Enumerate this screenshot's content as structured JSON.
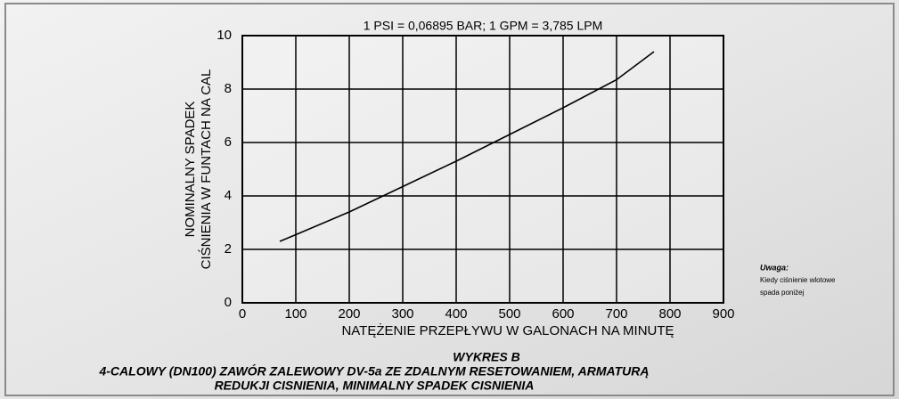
{
  "chart_data": {
    "type": "line",
    "title": "1 PSI = 0,06895 BAR; 1 GPM = 3,785 LPM",
    "xlabel": "NATĘŻENIE PRZEPŁYWU W GALONACH NA MINUTĘ",
    "ylabel": [
      "NOMINALNY SPADEK",
      "CIŚNIENIA W FUNTACH NA CAL"
    ],
    "caption": [
      "WYKRES B",
      "4-CALOWY (DN100) ZAWÓR ZALEWOWY DV-5a ZE ZDALNYM RESETOWANIEM, ARMATURĄ",
      "REDUKJI CISNIENIA, MINIMALNY SPADEK CISNIENIA"
    ],
    "note": {
      "title": "Uwaga:",
      "lines": [
        "Kiedy ciśnienie wlotowe",
        "spada poniżej"
      ]
    },
    "x": [
      70,
      100,
      200,
      300,
      400,
      500,
      600,
      700,
      770
    ],
    "values": [
      2.3,
      2.55,
      3.4,
      4.35,
      5.3,
      6.3,
      7.3,
      8.35,
      9.4
    ],
    "color": "#000000",
    "xlim": [
      0,
      900
    ],
    "xticks": [
      0,
      100,
      200,
      300,
      400,
      500,
      600,
      700,
      800,
      900
    ],
    "ylim": [
      0,
      10
    ],
    "yticks": [
      0,
      2,
      4,
      6,
      8,
      10
    ],
    "grid": true
  }
}
